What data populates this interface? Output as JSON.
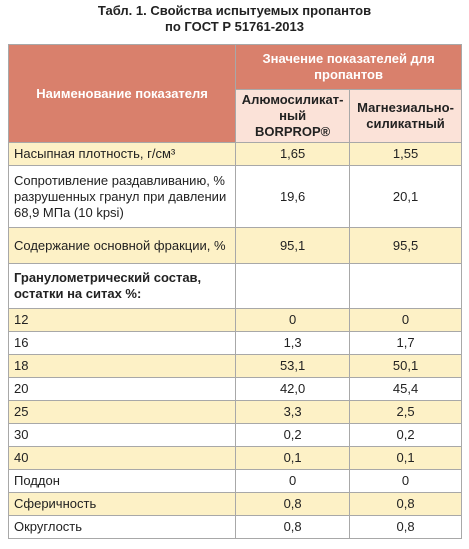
{
  "header": {
    "title": [
      "Табл. 1. Свойства испытуемых пропантов",
      "по ГОСТ Р 51761-2013"
    ]
  },
  "table": {
    "head": {
      "name": "Наименование показателя",
      "group": "Значение показателей для пропантов",
      "columns": [
        "Алюмосиликат-ный BORPROP®",
        "Магнезиально-силикатный"
      ]
    },
    "rows": [
      [
        "Насыпная плотность, г/см³",
        "1,65",
        "1,55"
      ],
      [
        "Сопротивление раздавливанию, % разрушенных гранул при давлении 68,9 МПа (10 kpsi)",
        "19,6",
        "20,1"
      ],
      [
        "Содержание основной фракции, %",
        "95,1",
        "95,5"
      ],
      [
        "Гранулометрический состав, остатки на ситах %:"
      ],
      [
        "12",
        "0",
        "0"
      ],
      [
        "16",
        "1,3",
        "1,7"
      ],
      [
        "18",
        "53,1",
        "50,1"
      ],
      [
        "20",
        "42,0",
        "45,4"
      ],
      [
        "25",
        "3,3",
        "2,5"
      ],
      [
        "30",
        "0,2",
        "0,2"
      ],
      [
        "40",
        "0,1",
        "0,1"
      ],
      [
        "Поддон",
        "0",
        "0"
      ],
      [
        "Сферичность",
        "0,8",
        "0,8"
      ],
      [
        "Округлость",
        "0,8",
        "0,8"
      ]
    ]
  }
}
